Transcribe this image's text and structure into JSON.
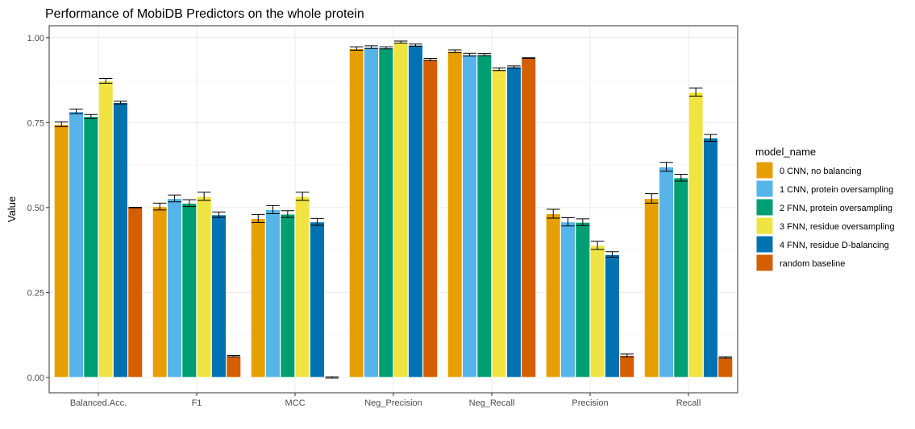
{
  "chart_data": {
    "type": "bar",
    "title": "Performance of MobiDB Predictors on the whole protein",
    "xlabel": "",
    "ylabel": "Value",
    "ylim": [
      -0.045,
      1.035
    ],
    "yticks": [
      0.0,
      0.25,
      0.5,
      0.75,
      1.0
    ],
    "ytick_labels": [
      "0.00",
      "0.25",
      "0.50",
      "0.75",
      "1.00"
    ],
    "grid": true,
    "legend_position": "right",
    "legend_title": "model_name",
    "categories": [
      "Balanced.Acc.",
      "F1",
      "MCC",
      "Neg_Precision",
      "Neg_Recall",
      "Precision",
      "Recall"
    ],
    "series": [
      {
        "name": "0 CNN, no balancing",
        "color": "#E69F00",
        "values": [
          0.745,
          0.503,
          0.468,
          0.968,
          0.96,
          0.482,
          0.527
        ],
        "errors": [
          0.007,
          0.01,
          0.012,
          0.005,
          0.004,
          0.013,
          0.014
        ]
      },
      {
        "name": "1 CNN, protein oversampling",
        "color": "#56B4E9",
        "values": [
          0.783,
          0.527,
          0.494,
          0.972,
          0.95,
          0.458,
          0.62
        ],
        "errors": [
          0.007,
          0.01,
          0.012,
          0.004,
          0.004,
          0.012,
          0.013
        ]
      },
      {
        "name": "2 FNN, protein oversampling",
        "color": "#009E73",
        "values": [
          0.768,
          0.513,
          0.481,
          0.97,
          0.95,
          0.457,
          0.588
        ],
        "errors": [
          0.006,
          0.01,
          0.01,
          0.003,
          0.003,
          0.01,
          0.01
        ]
      },
      {
        "name": "3 FNN, residue oversampling",
        "color": "#F0E442",
        "values": [
          0.873,
          0.533,
          0.533,
          0.987,
          0.907,
          0.389,
          0.84
        ],
        "errors": [
          0.007,
          0.012,
          0.012,
          0.003,
          0.004,
          0.012,
          0.012
        ]
      },
      {
        "name": "4 FNN, residue D-balancing",
        "color": "#0072B2",
        "values": [
          0.809,
          0.479,
          0.458,
          0.978,
          0.914,
          0.362,
          0.705
        ],
        "errors": [
          0.004,
          0.008,
          0.01,
          0.003,
          0.003,
          0.008,
          0.01
        ]
      },
      {
        "name": "random baseline",
        "color": "#D55E00",
        "values": [
          0.5,
          0.063,
          0.0,
          0.936,
          0.94,
          0.065,
          0.059
        ],
        "errors": [
          0.001,
          0.002,
          0.002,
          0.003,
          0.001,
          0.004,
          0.002
        ]
      }
    ]
  }
}
